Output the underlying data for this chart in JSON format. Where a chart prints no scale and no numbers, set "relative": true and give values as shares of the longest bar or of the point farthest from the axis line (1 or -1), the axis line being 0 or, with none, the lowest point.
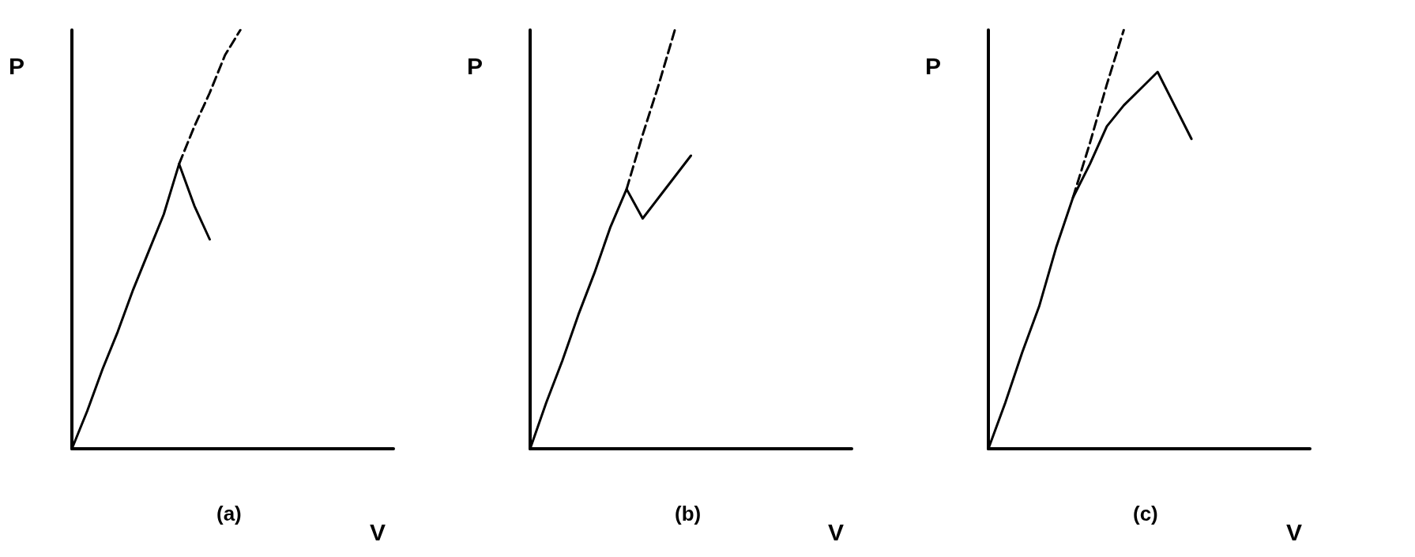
{
  "chart_data": [
    {
      "type": "line",
      "title": "(a)",
      "xlabel": "V",
      "ylabel": "P",
      "relative": true,
      "marker": "none",
      "categories": [
        null,
        null,
        null,
        null,
        null,
        null,
        null,
        null,
        null,
        null,
        null,
        null,
        null,
        null,
        null,
        null,
        null,
        null,
        null,
        null,
        null,
        null
      ],
      "series": [
        {
          "color": "#000000",
          "line_style": "solid",
          "values": [
            0,
            0.09,
            0.19,
            0.28,
            0.38,
            0.47,
            0.56,
            0.68,
            0.58,
            0.5,
            null,
            null,
            null,
            null,
            null,
            null,
            null,
            null,
            null,
            null,
            null,
            null
          ]
        },
        {
          "color": "#000000",
          "line_style": "dashed",
          "values": [
            null,
            null,
            null,
            null,
            null,
            null,
            null,
            0.68,
            0.77,
            0.85,
            0.94,
            1,
            null,
            null,
            null,
            null,
            null,
            null,
            null,
            null,
            null,
            null
          ]
        }
      ]
    },
    {
      "type": "line",
      "title": "(b)",
      "xlabel": "V",
      "ylabel": "P",
      "relative": true,
      "marker": "none",
      "categories": [
        null,
        null,
        null,
        null,
        null,
        null,
        null,
        null,
        null,
        null,
        null,
        null,
        null,
        null,
        null,
        null,
        null,
        null,
        null,
        null,
        null
      ],
      "series": [
        {
          "color": "#000000",
          "line_style": "solid",
          "values": [
            0,
            0.11,
            0.21,
            0.32,
            0.42,
            0.53,
            0.62,
            0.55,
            0.6,
            0.65,
            0.7,
            null,
            null,
            null,
            null,
            null,
            null,
            null,
            null,
            null,
            null
          ]
        },
        {
          "color": "#000000",
          "line_style": "dashed",
          "values": [
            null,
            null,
            null,
            null,
            null,
            null,
            0.62,
            0.75,
            0.87,
            1,
            null,
            null,
            null,
            null,
            null,
            null,
            null,
            null,
            null,
            null,
            null
          ]
        }
      ]
    },
    {
      "type": "line",
      "title": "(c)",
      "xlabel": "V",
      "ylabel": "P",
      "relative": true,
      "marker": "none",
      "categories": [
        null,
        null,
        null,
        null,
        null,
        null,
        null,
        null,
        null,
        null,
        null,
        null,
        null,
        null,
        null,
        null,
        null,
        null,
        null,
        null
      ],
      "series": [
        {
          "color": "#000000",
          "line_style": "solid",
          "values": [
            0,
            0.11,
            0.23,
            0.34,
            0.48,
            0.6,
            0.68,
            0.77,
            0.82,
            0.86,
            0.9,
            0.82,
            0.74,
            null,
            null,
            null,
            null,
            null,
            null,
            null
          ]
        },
        {
          "color": "#000000",
          "line_style": "dashed",
          "values": [
            null,
            null,
            null,
            null,
            null,
            0.6,
            0.73,
            0.87,
            1,
            null,
            null,
            null,
            null,
            null,
            null,
            null,
            null,
            null,
            null,
            null
          ]
        }
      ]
    }
  ]
}
